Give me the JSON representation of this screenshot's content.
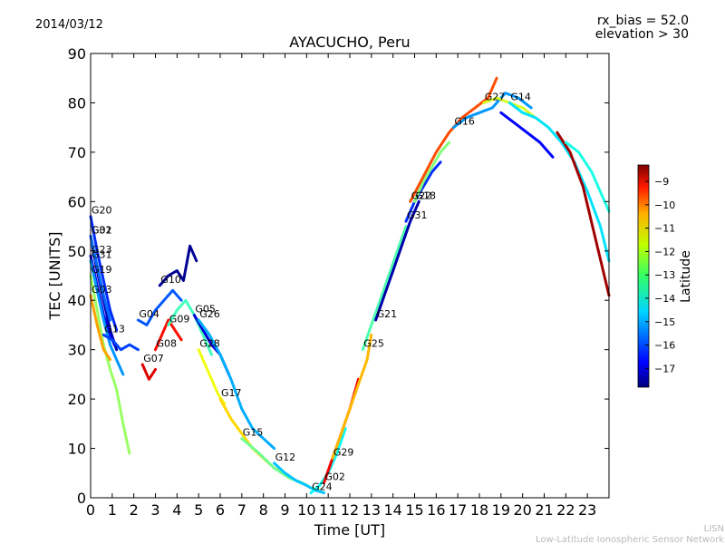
{
  "date_label": "2014/03/12",
  "rx_bias_label": "rx_bias = 52.0",
  "elevation_label": "elevation > 30",
  "footer": {
    "line1": "LISN",
    "line2": "Low-Latitude Ionospheric Sensor Network"
  },
  "colorbar": {
    "label": "Latitude",
    "min": -17.8,
    "max": -8.3,
    "ticks": [
      -9,
      -10,
      -11,
      -12,
      -13,
      -14,
      -15,
      -16,
      -17
    ]
  },
  "chart_data": {
    "type": "line",
    "title": "AYACUCHO, Peru",
    "xlabel": "Time [UT]",
    "ylabel": "TEC [UNITS]",
    "xlim": [
      0,
      24
    ],
    "ylim": [
      0,
      90
    ],
    "xticks": [
      0,
      1,
      2,
      3,
      4,
      5,
      6,
      7,
      8,
      9,
      10,
      11,
      12,
      13,
      14,
      15,
      16,
      17,
      18,
      19,
      20,
      21,
      22,
      23
    ],
    "yticks": [
      0,
      10,
      20,
      30,
      40,
      50,
      60,
      70,
      80,
      90
    ],
    "grid": false,
    "color_by": "Latitude",
    "series": [
      {
        "name": "G20",
        "lat": -16.2,
        "x": [
          0,
          0.3,
          0.6,
          0.9,
          1.2
        ],
        "y": [
          57,
          50,
          44,
          38,
          34
        ]
      },
      {
        "name": "G01",
        "lat": -17.3,
        "x": [
          0,
          0.3,
          0.6,
          0.9,
          1.2
        ],
        "y": [
          53,
          46,
          40,
          34,
          30
        ]
      },
      {
        "name": "G32",
        "lat": -15.6,
        "x": [
          0,
          0.3,
          0.6,
          0.9
        ],
        "y": [
          53,
          47,
          41,
          36
        ]
      },
      {
        "name": "G23",
        "lat": -16.8,
        "x": [
          0,
          0.3,
          0.6,
          0.9,
          1.1
        ],
        "y": [
          49,
          43,
          37,
          33,
          31
        ]
      },
      {
        "name": "G31",
        "lat": -15.2,
        "x": [
          0,
          0.3,
          0.6,
          0.9,
          1.2,
          1.5
        ],
        "y": [
          48,
          42,
          36,
          31,
          28,
          25
        ]
      },
      {
        "name": "G19",
        "lat": -12.8,
        "x": [
          0,
          0.3,
          0.6,
          0.9,
          1.2,
          1.5,
          1.8
        ],
        "y": [
          45,
          38,
          31,
          26,
          22,
          15,
          9
        ]
      },
      {
        "name": "G03",
        "lat": -11.0,
        "x": [
          0,
          0.3,
          0.6,
          0.9
        ],
        "y": [
          41,
          35,
          30,
          28
        ]
      },
      {
        "name": "G13",
        "lat": -16.0,
        "x": [
          0.6,
          1.0,
          1.4,
          1.8,
          2.2
        ],
        "y": [
          33,
          32,
          30,
          31,
          30
        ]
      },
      {
        "name": "G07",
        "lat": -9.2,
        "x": [
          2.4,
          2.7,
          3.0
        ],
        "y": [
          27,
          24,
          26
        ]
      },
      {
        "name": "G04",
        "lat": -15.8,
        "x": [
          2.2,
          2.6,
          3.0,
          3.4,
          3.8,
          4.2
        ],
        "y": [
          36,
          35,
          38,
          40,
          42,
          40
        ]
      },
      {
        "name": "G08",
        "lat": -9.6,
        "x": [
          3.0,
          3.3,
          3.6,
          3.9,
          4.2
        ],
        "y": [
          30,
          33,
          36,
          34,
          32
        ]
      },
      {
        "name": "G09",
        "lat": -13.6,
        "x": [
          3.6,
          4.0,
          4.4,
          4.8,
          5.2,
          5.6
        ],
        "y": [
          35,
          38,
          40,
          37,
          33,
          29
        ]
      },
      {
        "name": "G10",
        "lat": -17.6,
        "x": [
          3.2,
          3.6,
          4.0,
          4.3,
          4.6,
          4.9
        ],
        "y": [
          43,
          45,
          46,
          44,
          51,
          48
        ]
      },
      {
        "name": "G28",
        "lat": -12.0,
        "x": [
          5.0,
          5.3,
          5.6,
          5.9,
          6.2
        ],
        "y": [
          30,
          27,
          24,
          21,
          19
        ]
      },
      {
        "name": "G05",
        "lat": -17.0,
        "x": [
          4.8,
          5.2,
          5.6,
          6.0,
          6.4
        ],
        "y": [
          37,
          34,
          31,
          29,
          25
        ]
      },
      {
        "name": "G26",
        "lat": -15.0,
        "x": [
          5.0,
          5.5,
          6.0,
          6.5,
          7.0,
          7.5,
          8.0,
          8.5
        ],
        "y": [
          36,
          33,
          29,
          24,
          18,
          14,
          12,
          10
        ]
      },
      {
        "name": "G17",
        "lat": -11.5,
        "x": [
          6.0,
          6.5,
          7.0,
          7.5,
          8.0,
          8.5,
          9.0
        ],
        "y": [
          20,
          16,
          13,
          10,
          8,
          6,
          5
        ]
      },
      {
        "name": "G15",
        "lat": -13.2,
        "x": [
          7.0,
          7.8,
          8.5,
          9.2,
          9.8,
          10.2,
          10.6
        ],
        "y": [
          12,
          9,
          6,
          4,
          3,
          2,
          1.5
        ]
      },
      {
        "name": "G12",
        "lat": -14.8,
        "x": [
          8.5,
          9.0,
          9.5,
          10.0,
          10.4,
          10.8
        ],
        "y": [
          7,
          5,
          3.5,
          2.5,
          1.5,
          1
        ]
      },
      {
        "name": "G24",
        "lat": -14.2,
        "x": [
          10.2,
          10.6,
          11.0,
          11.4,
          11.8
        ],
        "y": [
          1,
          2.5,
          5,
          9,
          14
        ]
      },
      {
        "name": "G02",
        "lat": -9.4,
        "x": [
          10.8,
          11.2,
          11.6,
          12.0,
          12.4
        ],
        "y": [
          3,
          8,
          13,
          18,
          24
        ]
      },
      {
        "name": "G29",
        "lat": -11.2,
        "x": [
          11.2,
          11.6,
          12.0,
          12.4,
          12.8,
          13.0
        ],
        "y": [
          8,
          13,
          18,
          23,
          28,
          33
        ]
      },
      {
        "name": "G25",
        "lat": -13.5,
        "x": [
          12.6,
          13.0,
          13.4,
          13.8,
          14.2,
          14.6
        ],
        "y": [
          30,
          35,
          40,
          45,
          50,
          55
        ]
      },
      {
        "name": "G21",
        "lat": -17.4,
        "x": [
          13.2,
          13.6,
          14.0,
          14.4,
          14.8,
          15.2
        ],
        "y": [
          36,
          41,
          46,
          51,
          56,
          60
        ]
      },
      {
        "name": "G31",
        "lat": -16.2,
        "x": [
          14.6,
          15.0,
          15.4,
          15.8,
          16.2
        ],
        "y": [
          56,
          60,
          63,
          66,
          68
        ]
      },
      {
        "name": "G18",
        "lat": -13.0,
        "x": [
          15.0,
          15.4,
          15.8,
          16.2,
          16.6
        ],
        "y": [
          60,
          64,
          67,
          70,
          72
        ]
      },
      {
        "name": "G22",
        "lat": -10.2,
        "x": [
          14.8,
          15.4,
          16.0,
          16.6,
          17.2,
          17.8,
          18.4,
          18.8
        ],
        "y": [
          60,
          65,
          70,
          74,
          77,
          79,
          81,
          85
        ]
      },
      {
        "name": "G16",
        "lat": -15.2,
        "x": [
          16.8,
          17.4,
          18.0,
          18.6,
          19.2,
          19.8,
          20.4
        ],
        "y": [
          75,
          77,
          78,
          79,
          82,
          81,
          79
        ]
      },
      {
        "name": "G27",
        "lat": -12.2,
        "x": [
          18.2,
          18.8,
          19.4,
          20.0,
          20.6,
          21.2,
          21.8
        ],
        "y": [
          80,
          81,
          80,
          79,
          77,
          75,
          72
        ]
      },
      {
        "name": "G14",
        "lat": -14.5,
        "x": [
          19.4,
          20.0,
          20.6,
          21.2,
          21.8,
          22.4,
          23.0,
          23.6,
          24.0
        ],
        "y": [
          80,
          78,
          77,
          75,
          72,
          68,
          62,
          55,
          48
        ]
      },
      {
        "name": "",
        "lat": -8.6,
        "x": [
          21.6,
          22.2,
          22.8,
          23.4,
          24.0
        ],
        "y": [
          74,
          70,
          63,
          52,
          41
        ]
      },
      {
        "name": "",
        "lat": -16.6,
        "x": [
          19.0,
          19.6,
          20.2,
          20.8,
          21.4
        ],
        "y": [
          78,
          76,
          74,
          72,
          69
        ]
      },
      {
        "name": "",
        "lat": -14.0,
        "x": [
          22.0,
          22.6,
          23.2,
          23.8,
          24.0
        ],
        "y": [
          72,
          70,
          66,
          60,
          58
        ]
      }
    ]
  }
}
